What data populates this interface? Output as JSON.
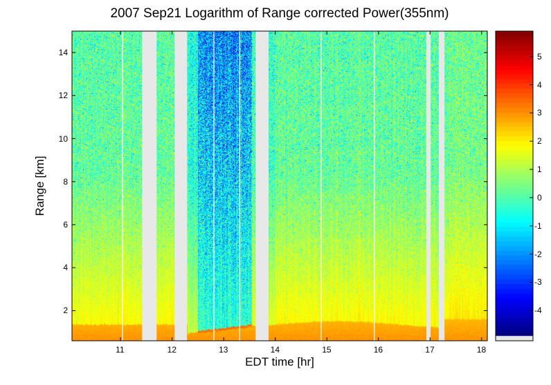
{
  "chart_data": {
    "type": "heatmap",
    "title": "2007 Sep21  Logarithm of Range corrected Power(355nm)",
    "xlabel": "EDT time [hr]",
    "ylabel": "Range [km]",
    "xlim": [
      10.06,
      18.11
    ],
    "ylim": [
      0.6,
      15.0
    ],
    "xticks": [
      "11",
      "12",
      "13",
      "14",
      "15",
      "16",
      "17",
      "18"
    ],
    "yticks": [
      "2",
      "4",
      "6",
      "8",
      "10",
      "12",
      "14"
    ],
    "colorbar": {
      "colormap": "jet",
      "clim": [
        -4.9,
        5.9
      ],
      "ticks": [
        "5",
        "4",
        "3",
        "2",
        "1",
        "0",
        "-1",
        "-2",
        "-3",
        "-4"
      ]
    },
    "data_gaps_hr": [
      [
        11.42,
        11.7
      ],
      [
        12.05,
        12.29
      ],
      [
        13.62,
        13.87
      ],
      [
        16.93,
        17.01
      ],
      [
        17.17,
        17.28
      ]
    ],
    "white_lines_hr": [
      11.04,
      12.81,
      13.31,
      14.89,
      15.92
    ],
    "boundary_layer_top_km": {
      "10-12": 1.35,
      "12.3-13.6": 1.1,
      "14-17": 1.45,
      "17.3-18.1": 1.6
    },
    "features": {
      "near_ground_value": 3.0,
      "low_range_value": 1.8,
      "upper_range_value": 0.3,
      "clear_column_value_12.5_13.5": -1.2
    }
  }
}
